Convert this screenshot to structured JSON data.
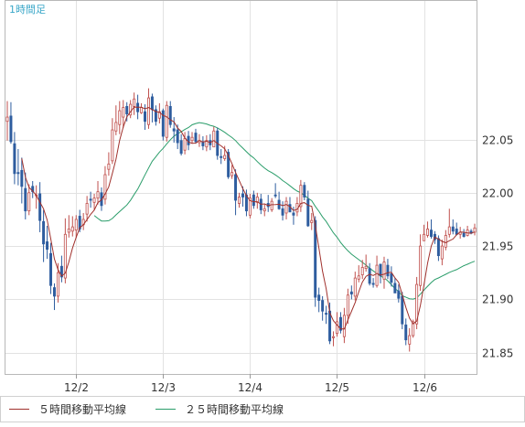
{
  "chart_data": {
    "type": "candlestick",
    "timeframe_label": "1時間足",
    "y_axis": {
      "min": 21.83,
      "max": 22.18,
      "ticks": [
        21.85,
        21.9,
        21.95,
        22.0,
        22.05
      ]
    },
    "x_axis": {
      "labels": [
        "12/2",
        "12/3",
        "12/4",
        "12/5",
        "12/6"
      ],
      "label_bar_index": [
        19,
        43,
        67,
        91,
        115
      ]
    },
    "grid": true,
    "up_color": "#c0504d",
    "down_color": "#2e5d9f",
    "legend": [
      {
        "label": "５時間移動平均線",
        "color": "#a0302c"
      },
      {
        "label": "２５時間移動平均線",
        "color": "#2a9d6a"
      }
    ],
    "opens": [
      22.067,
      22.072,
      22.046,
      22.019,
      22.021,
      22.004,
      21.983,
      22.006,
      21.998,
      21.999,
      21.973,
      21.954,
      21.943,
      21.911,
      21.903,
      21.931,
      21.92,
      21.963,
      21.964,
      21.965,
      21.978,
      21.97,
      21.98,
      21.994,
      21.991,
      21.995,
      22.0,
      21.994,
      22.022,
      22.03,
      22.058,
      22.064,
      22.071,
      22.081,
      22.073,
      22.081,
      22.084,
      22.075,
      22.076,
      22.064,
      22.09,
      22.078,
      22.07,
      22.077,
      22.052,
      22.081,
      22.06,
      22.059,
      22.049,
      22.04,
      22.053,
      22.049,
      22.056,
      22.047,
      22.048,
      22.043,
      22.049,
      22.043,
      22.058,
      22.034,
      22.032,
      22.038,
      22.016,
      22.017,
      21.99,
      21.999,
      21.998,
      21.979,
      21.998,
      21.991,
      21.994,
      21.983,
      21.99,
      21.984,
      21.998,
      21.993,
      21.985,
      21.981,
      21.989,
      21.981,
      21.982,
      21.987,
      22.007,
      21.994,
      21.972,
      21.974,
      21.904,
      21.899,
      21.887,
      21.889,
      21.864,
      21.868,
      21.883,
      21.865,
      21.885,
      21.907,
      21.903,
      21.919,
      21.923,
      21.929,
      21.929,
      21.915,
      21.913,
      21.933,
      21.919,
      21.932,
      21.924,
      21.915,
      21.908,
      21.903,
      21.876,
      21.858,
      21.866,
      21.877,
      21.913,
      21.955,
      21.96,
      21.965,
      21.961,
      21.957,
      21.938,
      21.949,
      21.961,
      21.968,
      21.966,
      21.961,
      21.962,
      21.96,
      21.964,
      21.963
    ],
    "closes": [
      22.071,
      22.048,
      22.018,
      22.018,
      22.006,
      21.983,
      22.0,
      22.001,
      21.998,
      21.974,
      21.952,
      21.947,
      21.913,
      21.903,
      21.925,
      21.921,
      21.961,
      21.966,
      21.968,
      21.975,
      21.966,
      21.975,
      21.99,
      21.993,
      21.995,
      22.001,
      21.988,
      22.017,
      22.027,
      22.059,
      22.066,
      22.077,
      22.08,
      22.074,
      22.083,
      22.088,
      22.076,
      22.08,
      22.067,
      22.089,
      22.078,
      22.067,
      22.076,
      22.053,
      22.082,
      22.064,
      22.058,
      22.047,
      22.037,
      22.051,
      22.045,
      22.052,
      22.048,
      22.049,
      22.044,
      22.049,
      22.045,
      22.058,
      22.035,
      22.033,
      22.035,
      22.015,
      22.019,
      21.993,
      21.996,
      21.996,
      21.983,
      21.995,
      21.988,
      21.996,
      21.984,
      21.985,
      21.987,
      21.992,
      21.997,
      21.985,
      21.979,
      21.992,
      21.982,
      21.979,
      21.99,
      22.007,
      21.996,
      21.969,
      21.974,
      21.902,
      21.899,
      21.889,
      21.886,
      21.861,
      21.865,
      21.879,
      21.871,
      21.885,
      21.904,
      21.905,
      21.92,
      21.922,
      21.93,
      21.931,
      21.915,
      21.914,
      21.932,
      21.922,
      21.935,
      21.922,
      21.916,
      21.906,
      21.901,
      21.877,
      21.862,
      21.866,
      21.879,
      21.914,
      21.95,
      21.961,
      21.966,
      21.959,
      21.956,
      21.941,
      21.95,
      21.96,
      21.968,
      21.964,
      21.961,
      21.963,
      21.959,
      21.965,
      21.962,
      21.967
    ],
    "highs": [
      22.086,
      22.085,
      22.057,
      22.041,
      22.033,
      22.019,
      22.008,
      22.011,
      22.007,
      22.01,
      21.984,
      21.969,
      21.953,
      21.915,
      21.934,
      21.941,
      21.976,
      21.979,
      21.978,
      21.979,
      21.984,
      21.981,
      21.997,
      22.001,
      21.999,
      22.011,
      22.005,
      22.025,
      22.038,
      22.07,
      22.082,
      22.086,
      22.087,
      22.085,
      22.087,
      22.094,
      22.092,
      22.084,
      22.083,
      22.098,
      22.093,
      22.082,
      22.084,
      22.079,
      22.086,
      22.086,
      22.071,
      22.064,
      22.055,
      22.057,
      22.058,
      22.057,
      22.06,
      22.055,
      22.053,
      22.054,
      22.055,
      22.062,
      22.061,
      22.041,
      22.044,
      22.041,
      22.026,
      22.022,
      22.0,
      22.006,
      22.003,
      21.999,
      22.002,
      22.0,
      21.999,
      21.989,
      21.998,
      21.995,
      22.009,
      22.001,
      21.992,
      21.996,
      21.996,
      21.987,
      21.996,
      22.012,
      22.01,
      22.002,
      21.981,
      21.978,
      21.911,
      21.903,
      21.894,
      21.897,
      21.87,
      21.888,
      21.888,
      21.892,
      21.91,
      21.913,
      21.926,
      21.932,
      21.937,
      21.942,
      21.934,
      21.92,
      21.941,
      21.933,
      21.94,
      21.938,
      21.931,
      21.92,
      21.914,
      21.907,
      21.882,
      21.873,
      21.881,
      21.921,
      21.961,
      21.97,
      21.973,
      21.975,
      21.964,
      21.96,
      21.956,
      21.965,
      21.985,
      21.975,
      21.972,
      21.968,
      21.966,
      21.969,
      21.966,
      21.971
    ],
    "lows": [
      22.049,
      22.046,
      22.008,
      22.007,
      21.99,
      21.975,
      21.979,
      21.995,
      21.985,
      21.963,
      21.935,
      21.938,
      21.905,
      21.89,
      21.897,
      21.916,
      21.915,
      21.958,
      21.959,
      21.958,
      21.963,
      21.965,
      21.973,
      21.986,
      21.984,
      21.989,
      21.983,
      21.989,
      22.016,
      22.027,
      22.054,
      22.055,
      22.061,
      22.067,
      22.07,
      22.073,
      22.069,
      22.074,
      22.059,
      22.06,
      22.066,
      22.063,
      22.065,
      22.049,
      22.048,
      22.061,
      22.047,
      22.041,
      22.035,
      22.036,
      22.04,
      22.046,
      22.046,
      22.043,
      22.04,
      22.039,
      22.04,
      22.043,
      22.031,
      22.027,
      22.03,
      22.013,
      22.013,
      21.979,
      21.986,
      21.987,
      21.978,
      21.976,
      21.985,
      21.985,
      21.98,
      21.978,
      21.982,
      21.982,
      21.995,
      21.984,
      21.974,
      21.975,
      21.982,
      21.97,
      21.978,
      21.982,
      21.993,
      21.968,
      21.965,
      21.893,
      21.888,
      21.88,
      21.877,
      21.858,
      21.856,
      21.865,
      21.868,
      21.859,
      21.877,
      21.9,
      21.899,
      21.916,
      21.919,
      21.926,
      21.913,
      21.911,
      21.911,
      21.915,
      21.91,
      21.919,
      21.912,
      21.906,
      21.897,
      21.872,
      21.857,
      21.851,
      21.864,
      21.872,
      21.908,
      21.955,
      21.958,
      21.957,
      21.952,
      21.936,
      21.932,
      21.946,
      21.958,
      21.961,
      21.96,
      21.957,
      21.958,
      21.959,
      21.961,
      21.96
    ]
  }
}
